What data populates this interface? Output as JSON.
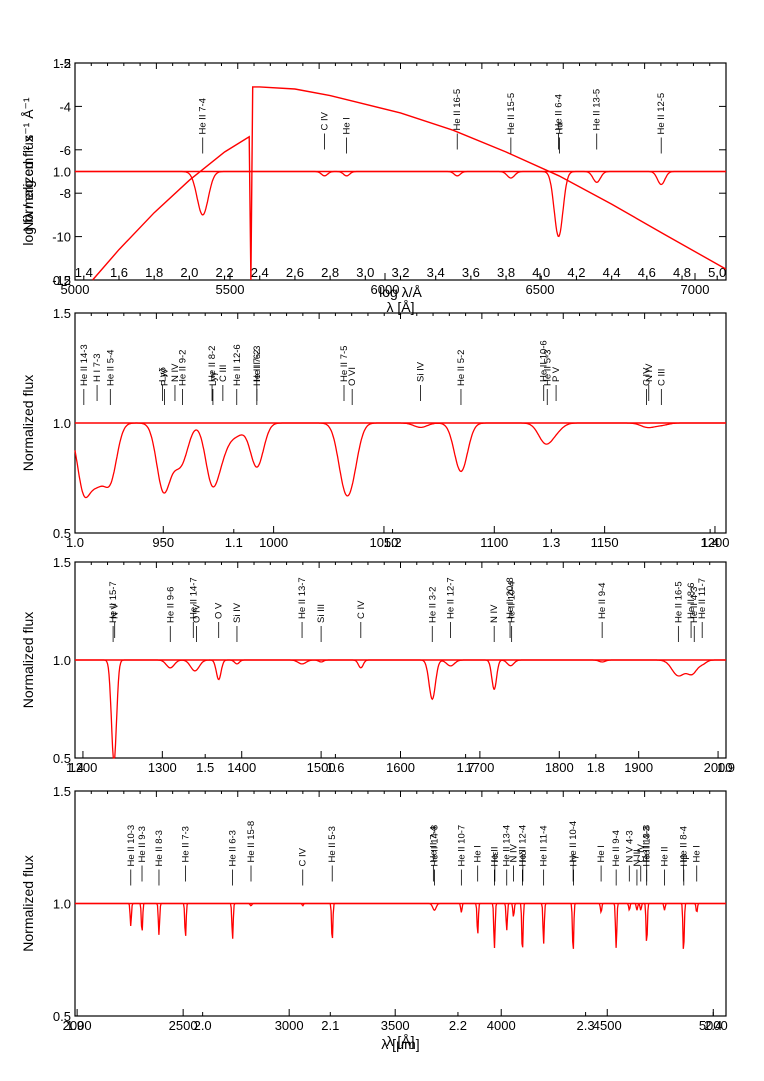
{
  "colors": {
    "spectrum": "#ff0000",
    "axes": "#000000",
    "background": "#ffffff"
  },
  "chart_data": [
    {
      "type": "line",
      "panel": 1,
      "xlabel": "λ [Å]",
      "x2label": "log λ/Å",
      "ylabel": "log fλ / erg cm⁻² s⁻¹ Å⁻¹",
      "ylabel_overlay": "Normalized flux",
      "xlim": [
        5000,
        7100
      ],
      "x2lim": [
        1.35,
        5.05
      ],
      "ylim": [
        -12,
        -2
      ],
      "y2lim": [
        0.5,
        1.5
      ],
      "xticks": [
        "5000",
        "5500",
        "6000",
        "6500",
        "7000"
      ],
      "x2ticks": [
        "1.4",
        "1.6",
        "1.8",
        "2.0",
        "2.2",
        "2.4",
        "2.6",
        "2.8",
        "3.0",
        "3.2",
        "3.4",
        "3.6",
        "3.8",
        "4.0",
        "4.2",
        "4.4",
        "4.6",
        "4.8",
        "5.0"
      ],
      "yticks": [
        "-2",
        "-4",
        "-6",
        "-8",
        "-10",
        "-12"
      ],
      "y2ticks": [
        "0.5",
        "1.0",
        "1.5"
      ],
      "sed": {
        "x": [
          1.45,
          1.6,
          1.8,
          2.0,
          2.2,
          2.34,
          2.35,
          2.36,
          2.4,
          2.6,
          2.8,
          2.95,
          3.2,
          3.5,
          3.8,
          4.1,
          4.4,
          4.7,
          5.05
        ],
        "y": [
          -12.0,
          -10.6,
          -8.9,
          -7.4,
          -6.1,
          -5.4,
          -12.0,
          -3.1,
          -3.1,
          -3.2,
          -3.5,
          -3.8,
          -4.3,
          -5.1,
          -6.1,
          -7.2,
          -8.5,
          -9.9,
          -11.5
        ]
      },
      "lines": [
        {
          "label": "He II 7-4",
          "wavelength": 5412,
          "depth": 0.2,
          "width": 18
        },
        {
          "label": "C IV",
          "wavelength": 5805,
          "depth": 0.02,
          "width": 10
        },
        {
          "label": "He I",
          "wavelength": 5876,
          "depth": 0.02,
          "width": 10
        },
        {
          "label": "He II 16-5",
          "wavelength": 6233,
          "depth": 0.02,
          "width": 10
        },
        {
          "label": "He II 15-5",
          "wavelength": 6406,
          "depth": 0.03,
          "width": 12
        },
        {
          "label": "He II 6-4",
          "wavelength": 6560,
          "depth": 0.3,
          "width": 14
        },
        {
          "label": "Hα",
          "wavelength": 6563,
          "depth": 0.0,
          "width": 10
        },
        {
          "label": "He II 13-5",
          "wavelength": 6683,
          "depth": 0.05,
          "width": 12
        },
        {
          "label": "He II 12-5",
          "wavelength": 6891,
          "depth": 0.06,
          "width": 12
        }
      ]
    },
    {
      "type": "line",
      "panel": 2,
      "ylabel": "Normalized flux",
      "xlim": [
        910,
        1205
      ],
      "x2lim": [
        1.0,
        1.41
      ],
      "ylim": [
        0.5,
        1.5
      ],
      "xticks": [
        "950",
        "1000",
        "1050",
        "1100",
        "1150",
        "1200"
      ],
      "x2ticks": [
        "1.0",
        "1.1",
        "1.2",
        "1.3",
        "1.4"
      ],
      "yticks": [
        "0.5",
        "1.0",
        "1.5"
      ],
      "lines": [
        {
          "label": "He II 14-3",
          "wavelength": 914,
          "depth": 0.3,
          "width": 3
        },
        {
          "label": "H I 7-3",
          "wavelength": 920,
          "depth": 0.22,
          "width": 3
        },
        {
          "label": "He II 5-4",
          "wavelength": 926,
          "depth": 0.25,
          "width": 3
        },
        {
          "label": "Lyδ",
          "wavelength": 949.7,
          "depth": 0.2,
          "width": 3
        },
        {
          "label": "P IV",
          "wavelength": 950.6,
          "depth": 0.1,
          "width": 3
        },
        {
          "label": "N IV",
          "wavelength": 955.3,
          "depth": 0.08,
          "width": 3
        },
        {
          "label": "He II 9-2",
          "wavelength": 958.7,
          "depth": 0.14,
          "width": 3
        },
        {
          "label": "He II 8-2",
          "wavelength": 972.1,
          "depth": 0.26,
          "width": 3
        },
        {
          "label": "Lyγ",
          "wavelength": 972.5,
          "depth": 0.0,
          "width": 3
        },
        {
          "label": "C III",
          "wavelength": 977.0,
          "depth": 0.1,
          "width": 3
        },
        {
          "label": "He II 12-6",
          "wavelength": 983.3,
          "depth": 0.05,
          "width": 3
        },
        {
          "label": "He II 6-3",
          "wavelength": 992.4,
          "depth": 0.2,
          "width": 3
        },
        {
          "label": "He II 7-2",
          "wavelength": 992.4,
          "depth": 0.0,
          "width": 3
        },
        {
          "label": "He II 7-5",
          "wavelength": 1031.9,
          "depth": 0.22,
          "width": 3
        },
        {
          "label": "O VI",
          "wavelength": 1035.6,
          "depth": 0.18,
          "width": 3
        },
        {
          "label": "Si IV",
          "wavelength": 1066.6,
          "depth": 0.02,
          "width": 3
        },
        {
          "label": "He II 5-2",
          "wavelength": 1084.9,
          "depth": 0.22,
          "width": 3
        },
        {
          "label": "He II 10-6",
          "wavelength": 1122.4,
          "depth": 0.05,
          "width": 3
        },
        {
          "label": "He II 5-3",
          "wavelength": 1124.0,
          "depth": 0.04,
          "width": 3
        },
        {
          "label": "P V",
          "wavelength": 1128.0,
          "depth": 0.03,
          "width": 3
        },
        {
          "label": "C IV",
          "wavelength": 1169.0,
          "depth": 0.01,
          "width": 3
        },
        {
          "label": "N IV",
          "wavelength": 1170.0,
          "depth": 0.01,
          "width": 3
        },
        {
          "label": "C III",
          "wavelength": 1175.7,
          "depth": 0.01,
          "width": 3
        }
      ]
    },
    {
      "type": "line",
      "panel": 3,
      "ylabel": "Normalized flux",
      "xlim": [
        1190,
        2010
      ],
      "x2lim": [
        1.4,
        1.9
      ],
      "ylim": [
        0.5,
        1.5
      ],
      "xticks": [
        "1200",
        "1300",
        "1400",
        "1500",
        "1600",
        "1700",
        "1800",
        "1900",
        "2000"
      ],
      "x2ticks": [
        "1.4",
        "1.5",
        "1.6",
        "1.7",
        "1.8",
        "1.9"
      ],
      "yticks": [
        "0.5",
        "1.0",
        "1.5"
      ],
      "lines": [
        {
          "label": "He II 15-7",
          "wavelength": 1238,
          "depth": 0.25,
          "width": 3
        },
        {
          "label": "N V",
          "wavelength": 1240,
          "depth": 0.3,
          "width": 3
        },
        {
          "label": "He II 9-6",
          "wavelength": 1310,
          "depth": 0.04,
          "width": 5
        },
        {
          "label": "He II 14-7",
          "wavelength": 1339,
          "depth": 0.03,
          "width": 5
        },
        {
          "label": "O IV",
          "wavelength": 1343,
          "depth": 0.03,
          "width": 5
        },
        {
          "label": "O V",
          "wavelength": 1371,
          "depth": 0.1,
          "width": 3
        },
        {
          "label": "Si IV",
          "wavelength": 1394,
          "depth": 0.02,
          "width": 3
        },
        {
          "label": "He II 13-7",
          "wavelength": 1476,
          "depth": 0.02,
          "width": 5
        },
        {
          "label": "Si III",
          "wavelength": 1500,
          "depth": 0.01,
          "width": 3
        },
        {
          "label": "C IV",
          "wavelength": 1550,
          "depth": 0.04,
          "width": 3
        },
        {
          "label": "He II 3-2",
          "wavelength": 1640,
          "depth": 0.2,
          "width": 4
        },
        {
          "label": "He II 12-7",
          "wavelength": 1663,
          "depth": 0.03,
          "width": 5
        },
        {
          "label": "N IV",
          "wavelength": 1718,
          "depth": 0.15,
          "width": 3
        },
        {
          "label": "He II 20-8",
          "wavelength": 1738,
          "depth": 0.02,
          "width": 4
        },
        {
          "label": "He II 10-4",
          "wavelength": 1740,
          "depth": 0.01,
          "width": 4
        },
        {
          "label": "He II 9-4",
          "wavelength": 1854,
          "depth": 0.01,
          "width": 4
        },
        {
          "label": "He II 16-5",
          "wavelength": 1950,
          "depth": 0.08,
          "width": 8
        },
        {
          "label": "He II 8-6",
          "wavelength": 1966,
          "depth": 0.05,
          "width": 6
        },
        {
          "label": "He II 4-3",
          "wavelength": 1970,
          "depth": 0.02,
          "width": 5
        },
        {
          "label": "He II 11-7",
          "wavelength": 1980,
          "depth": 0.02,
          "width": 5
        }
      ]
    },
    {
      "type": "line",
      "panel": 4,
      "xlabel": "λ [Å]",
      "x2label": "λ [μm]",
      "ylabel": "Normalized flux",
      "xlim": [
        1990,
        5060
      ],
      "x2lim": [
        1.9,
        2.41
      ],
      "ylim": [
        0.5,
        1.5
      ],
      "xticks": [
        "2000",
        "2500",
        "3000",
        "3500",
        "4000",
        "4500",
        "5000"
      ],
      "x2ticks": [
        "1.9",
        "2.0",
        "2.1",
        "2.2",
        "2.3",
        "2.4"
      ],
      "yticks": [
        "0.5",
        "1.0",
        "1.5"
      ],
      "lines": [
        {
          "label": "He II 10-3",
          "wavelength": 2253,
          "depth": 0.1,
          "width": 3
        },
        {
          "label": "He II 9-3",
          "wavelength": 2306,
          "depth": 0.13,
          "width": 3
        },
        {
          "label": "He II 8-3",
          "wavelength": 2386,
          "depth": 0.14,
          "width": 3
        },
        {
          "label": "He II 7-3",
          "wavelength": 2511,
          "depth": 0.15,
          "width": 3
        },
        {
          "label": "He II 6-3",
          "wavelength": 2733,
          "depth": 0.16,
          "width": 3
        },
        {
          "label": "He II 15-8",
          "wavelength": 2820,
          "depth": 0.01,
          "width": 4
        },
        {
          "label": "C IV",
          "wavelength": 3064,
          "depth": 0.01,
          "width": 3
        },
        {
          "label": "He II 5-3",
          "wavelength": 3203,
          "depth": 0.17,
          "width": 3
        },
        {
          "label": "He II 14-8",
          "wavelength": 3685,
          "depth": 0.03,
          "width": 8
        },
        {
          "label": "He II 7-4",
          "wavelength": 3680,
          "depth": 0.0,
          "width": 3
        },
        {
          "label": "He II 10-7",
          "wavelength": 3812,
          "depth": 0.04,
          "width": 3
        },
        {
          "label": "He I",
          "wavelength": 3889,
          "depth": 0.14,
          "width": 3
        },
        {
          "label": "He II",
          "wavelength": 3968,
          "depth": 0.2,
          "width": 3
        },
        {
          "label": "Hε",
          "wavelength": 3970,
          "depth": 0.0,
          "width": 3
        },
        {
          "label": "He II 13-4",
          "wavelength": 4026,
          "depth": 0.12,
          "width": 3
        },
        {
          "label": "N IV",
          "wavelength": 4058,
          "depth": 0.06,
          "width": 3
        },
        {
          "label": "He II 12-4",
          "wavelength": 4100,
          "depth": 0.22,
          "width": 3
        },
        {
          "label": "Hδ",
          "wavelength": 4102,
          "depth": 0.0,
          "width": 3
        },
        {
          "label": "He II 11-4",
          "wavelength": 4200,
          "depth": 0.18,
          "width": 3
        },
        {
          "label": "He II 10-4",
          "wavelength": 4339,
          "depth": 0.22,
          "width": 3
        },
        {
          "label": "Hγ",
          "wavelength": 4341,
          "depth": 0.0,
          "width": 3
        },
        {
          "label": "He I",
          "wavelength": 4471,
          "depth": 0.04,
          "width": 3
        },
        {
          "label": "He II 9-4",
          "wavelength": 4542,
          "depth": 0.2,
          "width": 3
        },
        {
          "label": "N V 4-3",
          "wavelength": 4604,
          "depth": 0.03,
          "width": 3
        },
        {
          "label": "N III",
          "wavelength": 4640,
          "depth": 0.03,
          "width": 3
        },
        {
          "label": "C IV",
          "wavelength": 4658,
          "depth": 0.03,
          "width": 3
        },
        {
          "label": "He II 13-8",
          "wavelength": 4686,
          "depth": 0.18,
          "width": 3
        },
        {
          "label": "He II 4-3",
          "wavelength": 4686,
          "depth": 0.0,
          "width": 3
        },
        {
          "label": "He II",
          "wavelength": 4770,
          "depth": 0.03,
          "width": 3
        },
        {
          "label": "He II 8-4",
          "wavelength": 4860,
          "depth": 0.22,
          "width": 3
        },
        {
          "label": "Hβ",
          "wavelength": 4861,
          "depth": 0.0,
          "width": 3
        },
        {
          "label": "He I",
          "wavelength": 4922,
          "depth": 0.04,
          "width": 3
        }
      ]
    }
  ]
}
